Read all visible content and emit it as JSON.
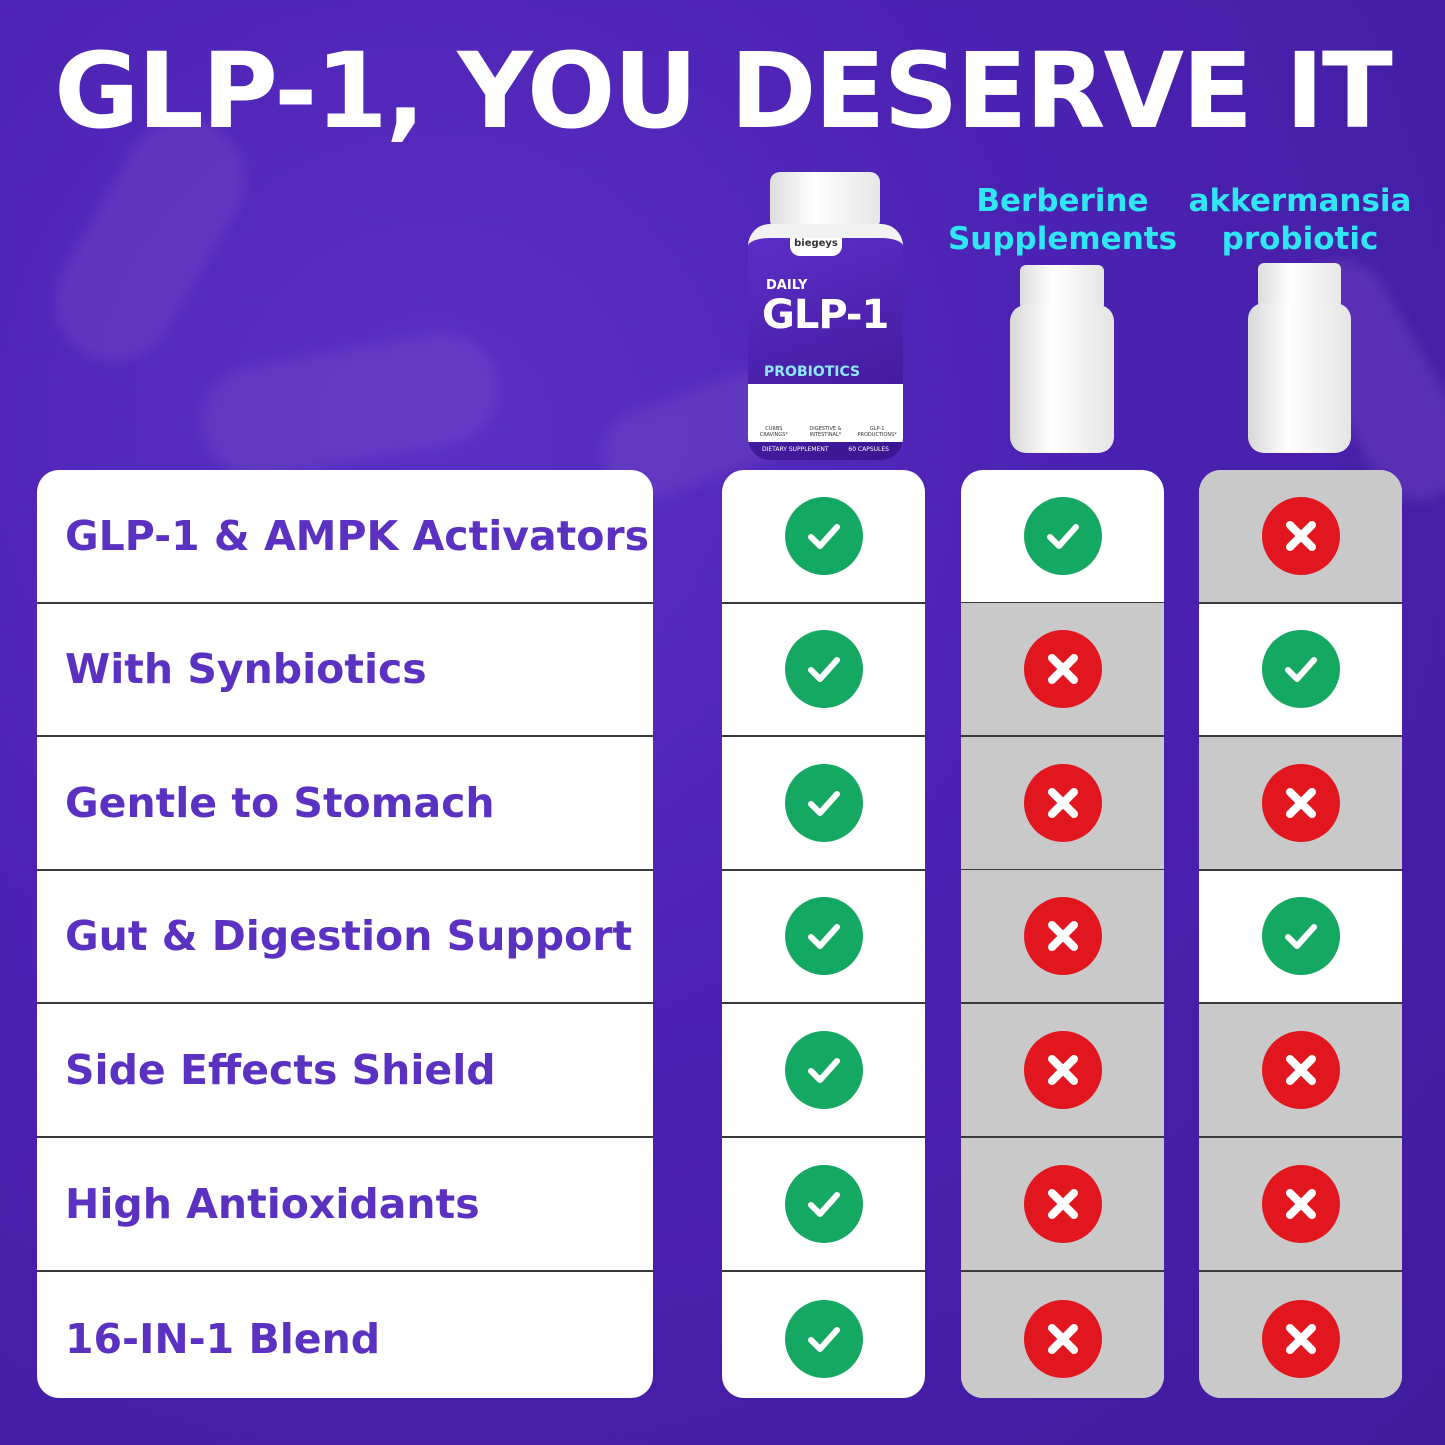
{
  "title": "GLP-1, YOU DESERVE IT",
  "colors": {
    "background": "#4b22b2",
    "feature_text": "#5b31c2",
    "header_text": "#2fe6f2",
    "check": "#14a862",
    "cross": "#e2161e",
    "no_cell": "#c9c9c9"
  },
  "product": {
    "brand": "biegeys",
    "line": "DAILY",
    "name": "GLP-1",
    "tag": "PROBIOTICS",
    "icons": [
      "CURBS CRAVINGS*",
      "DIGESTIVE & INTESTINAL*",
      "GLP-1 PRODUCTIONS*"
    ],
    "footer_left": "DIETARY SUPPLEMENT",
    "footer_right": "60 CAPSULES"
  },
  "columns": [
    {
      "label": "",
      "values": [
        true,
        true,
        true,
        true,
        true,
        true,
        true
      ]
    },
    {
      "label_lines": [
        "Berberine",
        "Supplements"
      ],
      "values": [
        true,
        false,
        false,
        false,
        false,
        false,
        false
      ]
    },
    {
      "label_lines": [
        "akkermansia",
        "probiotic"
      ],
      "values": [
        false,
        true,
        false,
        true,
        false,
        false,
        false
      ]
    }
  ],
  "features": [
    "GLP-1 & AMPK Activators",
    "With Synbiotics",
    "Gentle to Stomach",
    "Gut & Digestion Support",
    "Side Effects Shield",
    "High Antioxidants",
    "16-IN-1 Blend"
  ]
}
